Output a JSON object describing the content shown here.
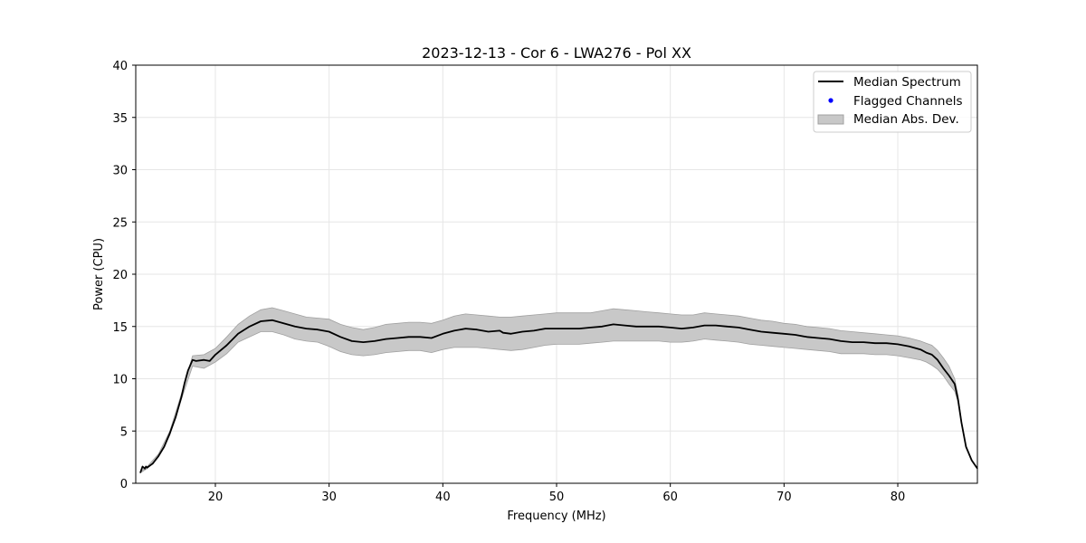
{
  "chart_data": {
    "type": "line",
    "title": "2023-12-13 - Cor 6 - LWA276 - Pol XX",
    "xlabel": "Frequency (MHz)",
    "ylabel": "Power (CPU)",
    "xlim": [
      13,
      87
    ],
    "ylim": [
      0,
      40
    ],
    "xticks": [
      20,
      30,
      40,
      50,
      60,
      70,
      80
    ],
    "yticks": [
      0,
      5,
      10,
      15,
      20,
      25,
      30,
      35,
      40
    ],
    "grid": true,
    "legend_position": "top-right",
    "legend": [
      "Median Spectrum",
      "Flagged Channels",
      "Median Abs. Dev."
    ],
    "colors": {
      "median": "#000000",
      "flagged": "#0000ff",
      "band": "#c8c8c8",
      "band_edge": "#a0a0a0"
    },
    "series": [
      {
        "name": "Median Spectrum",
        "x": [
          13.4,
          13.6,
          13.8,
          13.9,
          14.0,
          14.5,
          15.0,
          15.5,
          16.0,
          16.5,
          17.0,
          17.3,
          17.6,
          18.0,
          18.3,
          19.0,
          19.5,
          20.0,
          21.0,
          22.0,
          23.0,
          24.0,
          25.0,
          26.0,
          27.0,
          28.0,
          29.0,
          30.0,
          31.0,
          32.0,
          33.0,
          34.0,
          35.0,
          36.0,
          37.0,
          38.0,
          39.0,
          40.0,
          41.0,
          42.0,
          43.0,
          44.0,
          45.0,
          45.3,
          46.0,
          47.0,
          48.0,
          49.0,
          50.0,
          51.0,
          52.0,
          53.0,
          54.0,
          55.0,
          56.0,
          57.0,
          58.0,
          59.0,
          60.0,
          61.0,
          62.0,
          63.0,
          64.0,
          65.0,
          66.0,
          67.0,
          68.0,
          69.0,
          70.0,
          71.0,
          72.0,
          73.0,
          74.0,
          75.0,
          76.0,
          77.0,
          78.0,
          79.0,
          80.0,
          81.0,
          82.0,
          82.5,
          83.0,
          83.5,
          84.0,
          84.5,
          85.0,
          85.3,
          85.6,
          86.0,
          86.5,
          87.0
        ],
        "values": [
          1.0,
          1.6,
          1.4,
          1.6,
          1.5,
          1.9,
          2.6,
          3.5,
          4.8,
          6.3,
          8.2,
          9.6,
          10.8,
          11.8,
          11.7,
          11.8,
          11.7,
          12.3,
          13.2,
          14.3,
          15.0,
          15.5,
          15.6,
          15.3,
          15.0,
          14.8,
          14.7,
          14.5,
          14.0,
          13.6,
          13.5,
          13.6,
          13.8,
          13.9,
          14.0,
          14.0,
          13.9,
          14.3,
          14.6,
          14.8,
          14.7,
          14.5,
          14.6,
          14.4,
          14.3,
          14.5,
          14.6,
          14.8,
          14.8,
          14.8,
          14.8,
          14.9,
          15.0,
          15.2,
          15.1,
          15.0,
          15.0,
          15.0,
          14.9,
          14.8,
          14.9,
          15.1,
          15.1,
          15.0,
          14.9,
          14.7,
          14.5,
          14.4,
          14.3,
          14.2,
          14.0,
          13.9,
          13.8,
          13.6,
          13.5,
          13.5,
          13.4,
          13.4,
          13.3,
          13.1,
          12.8,
          12.5,
          12.3,
          11.8,
          11.0,
          10.3,
          9.5,
          8.0,
          5.8,
          3.5,
          2.2,
          1.4
        ]
      },
      {
        "name": "Median Abs. Dev.",
        "x": [
          13.4,
          14.0,
          15.0,
          16.0,
          17.0,
          18.0,
          19.0,
          20.0,
          21.0,
          22.0,
          23.0,
          24.0,
          25.0,
          26.0,
          27.0,
          28.0,
          29.0,
          30.0,
          31.0,
          32.0,
          33.0,
          34.0,
          35.0,
          36.0,
          37.0,
          38.0,
          39.0,
          40.0,
          41.0,
          42.0,
          43.0,
          44.0,
          45.0,
          46.0,
          47.0,
          48.0,
          49.0,
          50.0,
          51.0,
          52.0,
          53.0,
          54.0,
          55.0,
          56.0,
          57.0,
          58.0,
          59.0,
          60.0,
          61.0,
          62.0,
          63.0,
          64.0,
          65.0,
          66.0,
          67.0,
          68.0,
          69.0,
          70.0,
          71.0,
          72.0,
          73.0,
          74.0,
          75.0,
          76.0,
          77.0,
          78.0,
          79.0,
          80.0,
          81.0,
          82.0,
          82.5,
          83.0,
          83.5,
          84.0,
          84.5,
          85.0,
          85.3,
          85.6,
          86.0,
          86.5,
          87.0
        ],
        "lower": [
          1.0,
          1.4,
          2.5,
          4.6,
          8.0,
          11.2,
          11.0,
          11.6,
          12.4,
          13.5,
          14.0,
          14.5,
          14.5,
          14.2,
          13.8,
          13.6,
          13.5,
          13.1,
          12.6,
          12.3,
          12.2,
          12.3,
          12.5,
          12.6,
          12.7,
          12.7,
          12.5,
          12.8,
          13.0,
          13.0,
          13.0,
          12.9,
          12.8,
          12.7,
          12.8,
          13.0,
          13.2,
          13.3,
          13.3,
          13.3,
          13.4,
          13.5,
          13.6,
          13.6,
          13.6,
          13.6,
          13.6,
          13.5,
          13.5,
          13.6,
          13.8,
          13.7,
          13.6,
          13.5,
          13.3,
          13.2,
          13.1,
          13.0,
          12.9,
          12.8,
          12.7,
          12.6,
          12.4,
          12.4,
          12.4,
          12.3,
          12.3,
          12.2,
          12.0,
          11.8,
          11.6,
          11.3,
          10.9,
          10.3,
          9.5,
          8.8,
          7.8,
          5.8,
          3.5,
          2.2,
          1.4
        ],
        "upper": [
          1.1,
          1.6,
          2.8,
          5.0,
          8.5,
          12.2,
          12.3,
          12.9,
          14.0,
          15.2,
          16.0,
          16.6,
          16.8,
          16.5,
          16.2,
          15.9,
          15.8,
          15.7,
          15.2,
          14.9,
          14.7,
          14.9,
          15.2,
          15.3,
          15.4,
          15.4,
          15.3,
          15.6,
          16.0,
          16.2,
          16.1,
          16.0,
          15.9,
          15.9,
          16.0,
          16.1,
          16.2,
          16.3,
          16.3,
          16.3,
          16.3,
          16.5,
          16.7,
          16.6,
          16.5,
          16.4,
          16.3,
          16.2,
          16.1,
          16.1,
          16.3,
          16.2,
          16.1,
          16.0,
          15.8,
          15.6,
          15.5,
          15.3,
          15.2,
          15.0,
          14.9,
          14.8,
          14.6,
          14.5,
          14.4,
          14.3,
          14.2,
          14.1,
          13.9,
          13.6,
          13.4,
          13.2,
          12.7,
          12.0,
          11.2,
          10.0,
          8.4,
          6.0,
          3.6,
          2.2,
          1.4
        ]
      },
      {
        "name": "Flagged Channels",
        "x": [],
        "values": []
      }
    ]
  }
}
